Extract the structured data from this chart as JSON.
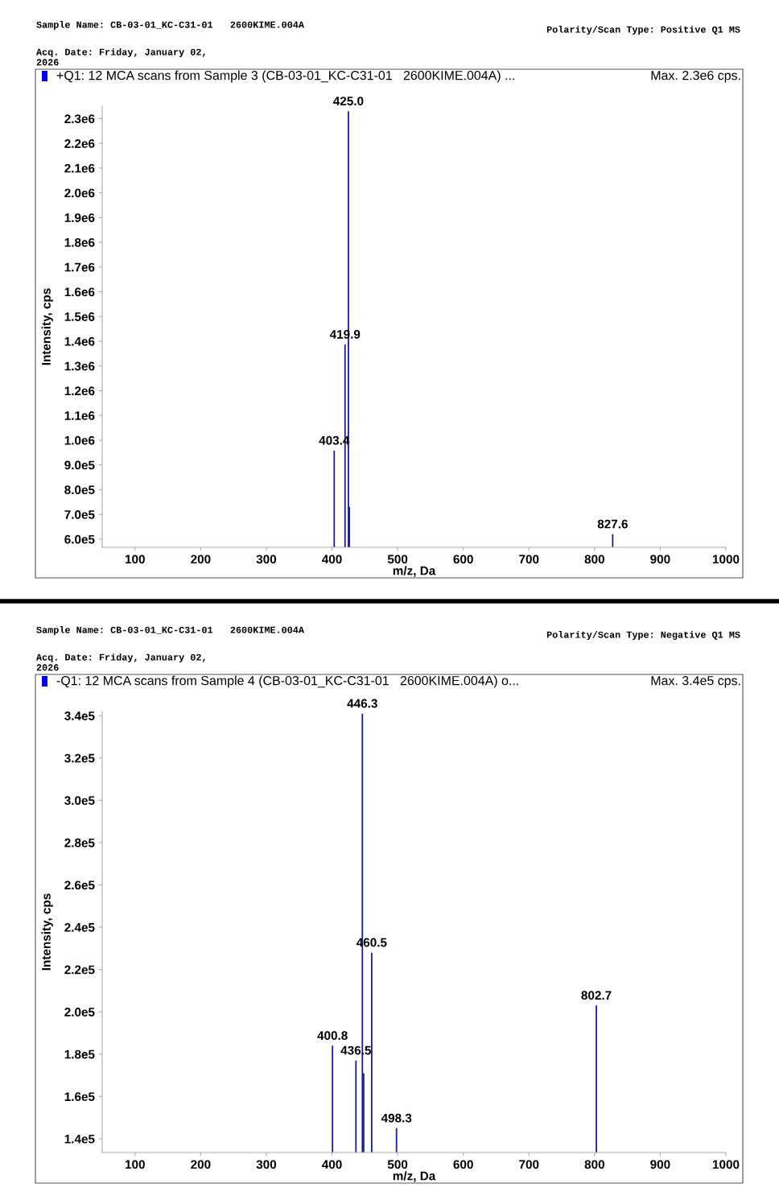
{
  "chart_data": [
    {
      "type": "bar",
      "title": "+Q1: 12 MCA scans from Sample 3 (CB-03-01_KC-C31-01   2600KIME.004A) ...",
      "subtitle": "Max. 2.3e6 cps.",
      "xlabel": "m/z, Da",
      "ylabel": "Intensity, cps",
      "annotations": [
        "Sample Name: CB-03-01_KC-C31-01   2600KIME.004A",
        "Acq. Date: Friday, January 02,\n2026",
        "Polarity/Scan Type: Positive Q1 MS",
        {
          "text": "403.4",
          "x": 403.4,
          "y": 958000
        },
        {
          "text": "419.9",
          "x": 419.9,
          "y": 1387000
        },
        {
          "text": "425.0",
          "x": 425.0,
          "y": 2330000
        },
        {
          "text": "827.6",
          "x": 827.6,
          "y": 620000
        }
      ],
      "x": [
        403.4,
        419.9,
        425.0,
        426.5,
        827.6
      ],
      "series": [
        {
          "color": "#1c1c8c",
          "values": [
            958000,
            1387000,
            2330000,
            730000,
            620000
          ]
        }
      ],
      "xlim": [
        50,
        1000
      ],
      "xticks": [
        100,
        200,
        300,
        400,
        500,
        600,
        700,
        800,
        900,
        1000
      ],
      "ylim": [
        567000,
        2350000
      ],
      "yticks": [
        {
          "value": 600000,
          "label": "6.0e5"
        },
        {
          "value": 700000,
          "label": "7.0e5"
        },
        {
          "value": 800000,
          "label": "8.0e5"
        },
        {
          "value": 900000,
          "label": "9.0e5"
        },
        {
          "value": 1000000,
          "label": "1.0e6"
        },
        {
          "value": 1100000,
          "label": "1.1e6"
        },
        {
          "value": 1200000,
          "label": "1.2e6"
        },
        {
          "value": 1300000,
          "label": "1.3e6"
        },
        {
          "value": 1400000,
          "label": "1.4e6"
        },
        {
          "value": 1500000,
          "label": "1.5e6"
        },
        {
          "value": 1600000,
          "label": "1.6e6"
        },
        {
          "value": 1700000,
          "label": "1.7e6"
        },
        {
          "value": 1800000,
          "label": "1.8e6"
        },
        {
          "value": 1900000,
          "label": "1.9e6"
        },
        {
          "value": 2000000,
          "label": "2.0e6"
        },
        {
          "value": 2100000,
          "label": "2.1e6"
        },
        {
          "value": 2200000,
          "label": "2.2e6"
        },
        {
          "value": 2300000,
          "label": "2.3e6"
        }
      ]
    },
    {
      "type": "bar",
      "title": "-Q1: 12 MCA scans from Sample 4 (CB-03-01_KC-C31-01   2600KIME.004A) o...",
      "subtitle": "Max. 3.4e5 cps.",
      "xlabel": "m/z, Da",
      "ylabel": "Intensity, cps",
      "annotations": [
        "Sample Name: CB-03-01_KC-C31-01   2600KIME.004A",
        "Acq. Date: Friday, January 02,\n2026",
        "Polarity/Scan Type: Negative Q1 MS",
        {
          "text": "400.8",
          "x": 400.8,
          "y": 184000
        },
        {
          "text": "436.5",
          "x": 436.5,
          "y": 177000
        },
        {
          "text": "446.3",
          "x": 446.3,
          "y": 341000
        },
        {
          "text": "460.5",
          "x": 460.5,
          "y": 228000
        },
        {
          "text": "498.3",
          "x": 498.3,
          "y": 145000
        },
        {
          "text": "802.7",
          "x": 802.7,
          "y": 203000
        }
      ],
      "x": [
        400.8,
        436.5,
        446.3,
        448.3,
        460.5,
        498.3,
        802.7
      ],
      "series": [
        {
          "color": "#1c1c8c",
          "values": [
            184000,
            177000,
            341000,
            171000,
            228000,
            145000,
            203000
          ]
        }
      ],
      "xlim": [
        50,
        1000
      ],
      "xticks": [
        100,
        200,
        300,
        400,
        500,
        600,
        700,
        800,
        900,
        1000
      ],
      "ylim": [
        133500,
        342000
      ],
      "yticks": [
        {
          "value": 140000,
          "label": "1.4e5"
        },
        {
          "value": 160000,
          "label": "1.6e5"
        },
        {
          "value": 180000,
          "label": "1.8e5"
        },
        {
          "value": 200000,
          "label": "2.0e5"
        },
        {
          "value": 220000,
          "label": "2.2e5"
        },
        {
          "value": 240000,
          "label": "2.4e5"
        },
        {
          "value": 260000,
          "label": "2.6e5"
        },
        {
          "value": 280000,
          "label": "2.8e5"
        },
        {
          "value": 300000,
          "label": "3.0e5"
        },
        {
          "value": 320000,
          "label": "3.2e5"
        },
        {
          "value": 340000,
          "label": "3.4e5"
        }
      ]
    }
  ]
}
